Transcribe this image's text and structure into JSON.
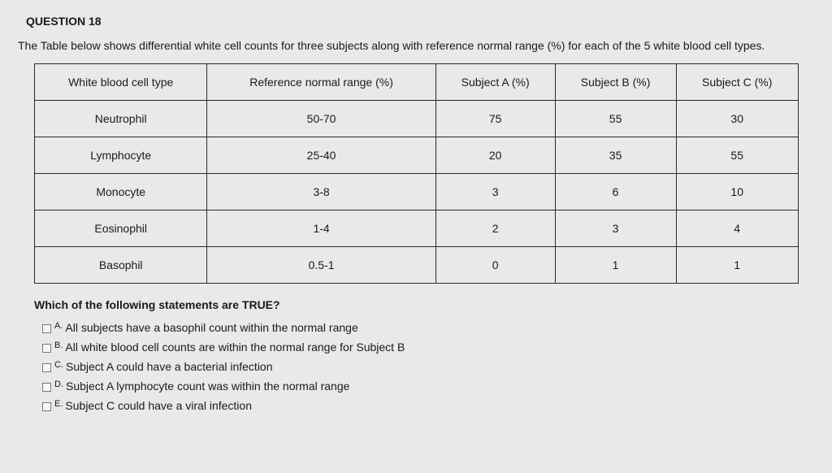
{
  "question_label": "QUESTION 18",
  "stem": "The Table below shows differential white cell counts for three subjects along with reference normal range (%) for each of the 5 white blood cell types.",
  "table": {
    "columns": [
      "White blood cell type",
      "Reference normal range (%)",
      "Subject A (%)",
      "Subject B (%)",
      "Subject C (%)"
    ],
    "rows": [
      [
        "Neutrophil",
        "50-70",
        "75",
        "55",
        "30"
      ],
      [
        "Lymphocyte",
        "25-40",
        "20",
        "35",
        "55"
      ],
      [
        "Monocyte",
        "3-8",
        "3",
        "6",
        "10"
      ],
      [
        "Eosinophil",
        "1-4",
        "2",
        "3",
        "4"
      ],
      [
        "Basophil",
        "0.5-1",
        "0",
        "1",
        "1"
      ]
    ]
  },
  "prompt": "Which of the following statements are TRUE?",
  "options": [
    {
      "letter": "A.",
      "text": "All subjects have a basophil count within the normal range"
    },
    {
      "letter": "B.",
      "text": "All white blood cell counts are within the normal range for Subject B"
    },
    {
      "letter": "C.",
      "text": "Subject A could have a bacterial infection"
    },
    {
      "letter": "D.",
      "text": "Subject A lymphocyte count was within the normal range"
    },
    {
      "letter": "E.",
      "text": "Subject C could have a viral infection"
    }
  ]
}
